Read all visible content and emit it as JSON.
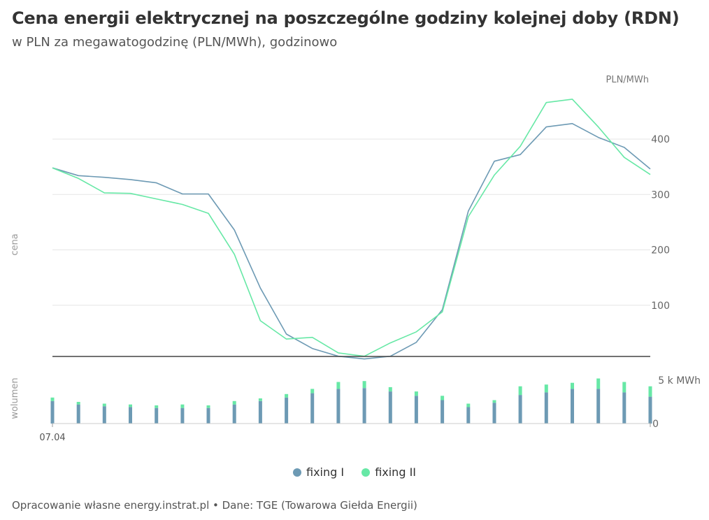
{
  "title": "Cena energii elektrycznej na poszczególne godziny kolejnej doby (RDN)",
  "subtitle": "w PLN za megawatogodzinę (PLN/MWh), godzinowo",
  "footer": "Opracowanie własne energy.instrat.pl • Dane: TGE (Towarowa Giełda Energii)",
  "chart_data": [
    {
      "type": "line",
      "ylabel": "cena",
      "unit_label": "PLN/MWh",
      "x_tick_label": "07.04",
      "x": [
        0,
        1,
        2,
        3,
        4,
        5,
        6,
        7,
        8,
        9,
        10,
        11,
        12,
        13,
        14,
        15,
        16,
        17,
        18,
        19,
        20,
        21,
        22,
        23
      ],
      "ylim": [
        0,
        470
      ],
      "yticks": [
        100,
        200,
        300,
        400
      ],
      "grid": true,
      "series": [
        {
          "name": "fixing I",
          "color": "#6d9ab4",
          "values": [
            348,
            334,
            331,
            327,
            321,
            301,
            301,
            236,
            131,
            48,
            22,
            8,
            3,
            8,
            33,
            92,
            270,
            360,
            372,
            422,
            428,
            403,
            385,
            346
          ]
        },
        {
          "name": "fixing II",
          "color": "#67e8a6",
          "values": [
            348,
            329,
            303,
            302,
            292,
            282,
            266,
            192,
            72,
            39,
            42,
            14,
            8,
            32,
            52,
            88,
            260,
            335,
            387,
            466,
            472,
            422,
            367,
            336
          ]
        }
      ]
    },
    {
      "type": "bar",
      "ylabel": "wolumen",
      "x_tick_label": "07.04",
      "ylim": [
        0,
        5
      ],
      "yticks": [
        0,
        5
      ],
      "ytick_labels": [
        "0",
        "5 k MWh"
      ],
      "categories": [
        0,
        1,
        2,
        3,
        4,
        5,
        6,
        7,
        8,
        9,
        10,
        11,
        12,
        13,
        14,
        15,
        16,
        17,
        18,
        19,
        20,
        21,
        22,
        23
      ],
      "series": [
        {
          "name": "fixing I",
          "color": "#6d9ab4",
          "values": [
            2.6,
            2.2,
            2.0,
            1.9,
            1.8,
            1.8,
            1.8,
            2.2,
            2.6,
            3.0,
            3.5,
            4.0,
            4.1,
            3.7,
            3.2,
            2.7,
            1.9,
            2.4,
            3.3,
            3.6,
            4.0,
            4.0,
            3.6,
            3.1
          ]
        },
        {
          "name": "fixing II",
          "color": "#67e8a6",
          "values": [
            0.4,
            0.3,
            0.3,
            0.3,
            0.3,
            0.4,
            0.3,
            0.4,
            0.3,
            0.4,
            0.5,
            0.8,
            0.8,
            0.5,
            0.5,
            0.5,
            0.4,
            0.3,
            1.0,
            0.9,
            0.7,
            1.2,
            1.2,
            1.2
          ]
        }
      ]
    }
  ]
}
